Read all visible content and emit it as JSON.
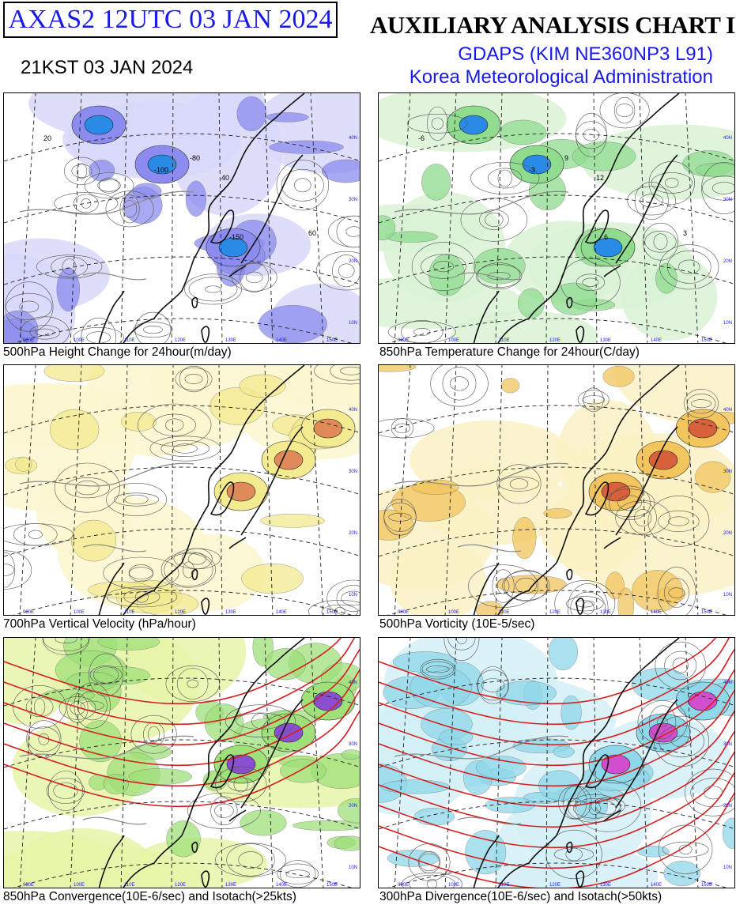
{
  "header": {
    "product_id": "AXAS2  12UTC 03 JAN 2024",
    "local_time": "21KST 03 JAN 2024",
    "chart_title": "AUXILIARY ANALYSIS CHART II",
    "model": "GDAPS (KIM NE360NP3 L91)",
    "agency": "Korea Meteorological Administration"
  },
  "panels": [
    {
      "caption": "500hPa Height Change for 24hour(m/day)",
      "fill": "#8c8cf0",
      "fill_light": "#d8d8fa",
      "fill_dark": "#2a8be6",
      "labels": [
        "-100",
        "-150",
        "-80",
        "40",
        "20",
        "60"
      ]
    },
    {
      "caption": "850hPa Temperature Change for 24hour(C/day)",
      "fill": "#8fdc8f",
      "fill_light": "#d9f2d5",
      "fill_dark": "#2a8be6",
      "labels": [
        "-3",
        "6",
        "9",
        "12",
        "-6",
        "3"
      ]
    },
    {
      "caption": "700hPa Vertical Velocity (hPa/hour)",
      "fill": "#f4ea90",
      "fill_light": "#fbf7cf",
      "fill_dark": "#e08a5a",
      "labels": []
    },
    {
      "caption": "500hPa Vorticity (10E-5/sec)",
      "fill": "#f2c55e",
      "fill_light": "#faf1c4",
      "fill_dark": "#d8603a",
      "labels": []
    },
    {
      "caption": "850hPa Convergence(10E-6/sec) and Isotach(>25kts)",
      "fill": "#9fe07a",
      "fill_light": "#e6f5a8",
      "fill_dark": "#8a4fd0",
      "labels": []
    },
    {
      "caption": "300hPa Divergence(10E-6/sec) and Isotach(>50kts)",
      "fill": "#8fd8ea",
      "fill_light": "#d3f0f7",
      "fill_dark": "#d14fcf",
      "labels": []
    }
  ],
  "map_grid": {
    "lon_labels": [
      "090E",
      "100E",
      "110E",
      "120E",
      "130E",
      "140E",
      "150E"
    ],
    "lat_labels": [
      "10N",
      "20N",
      "30N",
      "40N"
    ]
  },
  "colors": {
    "title_blue": "#1a1ae6",
    "coast": "#111111",
    "isotach_red": "#d42020",
    "label_blue": "#1a1ae6"
  }
}
